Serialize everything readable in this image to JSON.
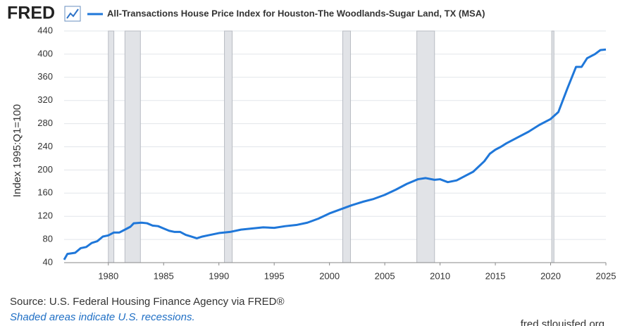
{
  "logo": "FRED",
  "chart_data": {
    "type": "line",
    "x": [
      1976,
      1976.3,
      1977,
      1977.5,
      1978,
      1978.5,
      1979,
      1979.5,
      1980,
      1980.5,
      1981,
      1981.5,
      1982,
      1982.3,
      1983,
      1983.5,
      1984,
      1984.5,
      1985,
      1985.5,
      1986,
      1986.5,
      1987,
      1987.5,
      1988,
      1988.5,
      1989,
      1989.5,
      1990,
      1991,
      1992,
      1993,
      1994,
      1995,
      1996,
      1997,
      1998,
      1999,
      2000,
      2001,
      2002,
      2003,
      2004,
      2005,
      2006,
      2007,
      2008,
      2008.7,
      2009.5,
      2010,
      2010.7,
      2011.5,
      2012,
      2013,
      2014,
      2014.5,
      2015,
      2015.5,
      2016,
      2017,
      2018,
      2019,
      2020,
      2020.7,
      2021.5,
      2022.3,
      2022.8,
      2023.3,
      2024,
      2024.5,
      2025
    ],
    "series": [
      {
        "name": "All-Transactions House Price Index for Houston-The Woodlands-Sugar Land, TX (MSA)",
        "color": "#1f77d9",
        "values": [
          45,
          55,
          57,
          65,
          67,
          74,
          77,
          85,
          87,
          92,
          92,
          97,
          102,
          108,
          109,
          108,
          104,
          103,
          99,
          95,
          93,
          93,
          88,
          85,
          82,
          85,
          87,
          89,
          91,
          93,
          97,
          99,
          101,
          100,
          103,
          105,
          109,
          116,
          125,
          132,
          139,
          145,
          150,
          157,
          166,
          176,
          184,
          186,
          183,
          184,
          179,
          182,
          187,
          197,
          215,
          228,
          235,
          240,
          246,
          256,
          266,
          278,
          288,
          300,
          340,
          378,
          378,
          393,
          400,
          407,
          408
        ]
      }
    ],
    "recessions": [
      [
        1980.0,
        1980.5
      ],
      [
        1981.5,
        1982.9
      ],
      [
        1990.5,
        1991.2
      ],
      [
        2001.2,
        2001.9
      ],
      [
        2007.9,
        2009.5
      ],
      [
        2020.1,
        2020.3
      ]
    ],
    "xlim": [
      1976,
      2025
    ],
    "xticks": [
      1980,
      1985,
      1990,
      1995,
      2000,
      2005,
      2010,
      2015,
      2020,
      2025
    ],
    "ylim": [
      40,
      440
    ],
    "yticks": [
      40,
      80,
      120,
      160,
      200,
      240,
      280,
      320,
      360,
      400,
      440
    ],
    "y_label": "Index 1995:Q1=100",
    "grid": true,
    "source": "Source: U.S. Federal Housing Finance Agency via FRED®",
    "note": "Shaded areas indicate U.S. recessions.",
    "url": "fred.stlouisfed.org"
  }
}
